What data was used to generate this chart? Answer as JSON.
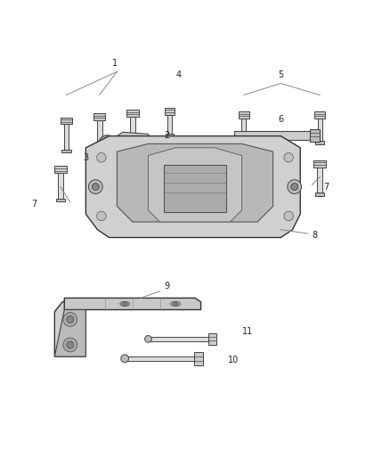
{
  "title": "",
  "background_color": "#ffffff",
  "fig_width": 4.38,
  "fig_height": 5.33,
  "dpi": 100,
  "line_color": "#888888",
  "part_color": "#555555",
  "bolt_color": "#444444"
}
